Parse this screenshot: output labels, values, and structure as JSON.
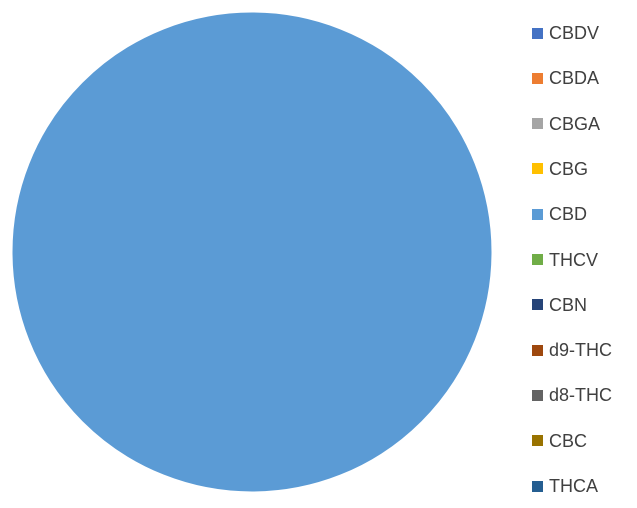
{
  "chart_data": {
    "type": "pie",
    "categories": [
      "CBDV",
      "CBDA",
      "CBGA",
      "CBG",
      "CBD",
      "THCV",
      "CBN",
      "d9-THC",
      "d8-THC",
      "CBC",
      "THCA"
    ],
    "values": [
      0,
      0,
      0,
      0,
      100,
      0,
      0,
      0,
      0,
      0,
      0
    ],
    "colors": [
      "#4472C4",
      "#ED7D31",
      "#A5A5A5",
      "#FFC000",
      "#5B9BD5",
      "#70AD47",
      "#264478",
      "#9E480E",
      "#636363",
      "#997300",
      "#255E91"
    ],
    "legend_position": "right",
    "title": ""
  }
}
